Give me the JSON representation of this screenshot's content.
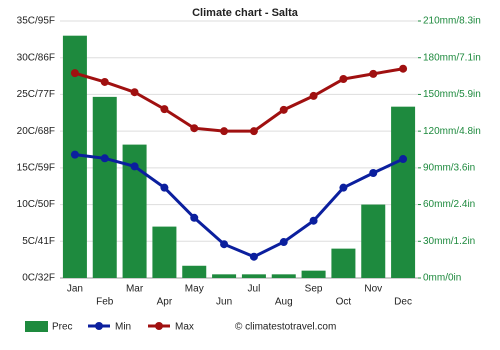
{
  "chart_data": {
    "type": "combo",
    "title": "Climate chart - Salta",
    "categories": [
      "Jan",
      "Feb",
      "Mar",
      "Apr",
      "May",
      "Jun",
      "Jul",
      "Aug",
      "Sep",
      "Oct",
      "Nov",
      "Dec"
    ],
    "series": [
      {
        "name": "Prec",
        "type": "bar",
        "axis": "y2",
        "color": "#1e8a3e",
        "values": [
          198,
          148,
          109,
          42,
          10,
          3,
          3,
          3,
          6,
          24,
          60,
          140
        ]
      },
      {
        "name": "Min",
        "type": "line",
        "color": "#0b1f9e",
        "values": [
          16.8,
          16.3,
          15.2,
          12.3,
          8.2,
          4.6,
          2.9,
          4.9,
          7.8,
          12.3,
          14.3,
          16.2
        ]
      },
      {
        "name": "Max",
        "type": "line",
        "color": "#a01010",
        "values": [
          27.9,
          26.7,
          25.3,
          23.0,
          20.4,
          20.0,
          20.0,
          22.9,
          24.8,
          27.1,
          27.8,
          28.5
        ]
      }
    ],
    "ylim": [
      0,
      35
    ],
    "yticks": [
      {
        "value": 0,
        "label": "0C/32F"
      },
      {
        "value": 5,
        "label": "5C/41F"
      },
      {
        "value": 10,
        "label": "10C/50F"
      },
      {
        "value": 15,
        "label": "15C/59F"
      },
      {
        "value": 20,
        "label": "20C/68F"
      },
      {
        "value": 25,
        "label": "25C/77F"
      },
      {
        "value": 30,
        "label": "30C/86F"
      },
      {
        "value": 35,
        "label": "35C/95F"
      }
    ],
    "y2lim": [
      0,
      210
    ],
    "y2ticks": [
      {
        "value": 0,
        "label": "0mm/0in"
      },
      {
        "value": 30,
        "label": "30mm/1.2in"
      },
      {
        "value": 60,
        "label": "60mm/2.4in"
      },
      {
        "value": 90,
        "label": "90mm/3.6in"
      },
      {
        "value": 120,
        "label": "120mm/4.8in"
      },
      {
        "value": 150,
        "label": "150mm/5.9in"
      },
      {
        "value": 180,
        "label": "180mm/7.1in"
      },
      {
        "value": 210,
        "label": "210mm/8.3in"
      }
    ],
    "grid": true,
    "watermark": "© climatestotravel.com"
  }
}
